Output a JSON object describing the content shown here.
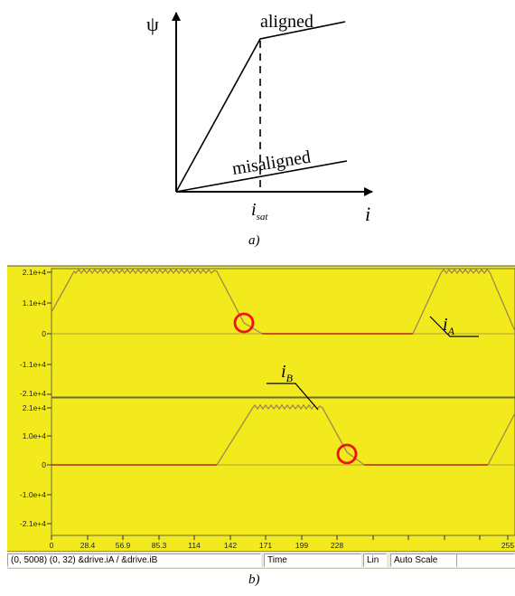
{
  "diagram_a": {
    "y_axis_label": "ψ",
    "x_axis_label": "i",
    "curve_upper_label": "aligned",
    "curve_lower_label": "misaligned",
    "sat_label_main": "i",
    "sat_label_sub": "sat",
    "caption": "a)"
  },
  "scope": {
    "plot_bg": "#f2ea1c",
    "trace_color": "#c02020",
    "ramp_color": "#a08850",
    "marker_color": "#ee1111",
    "top_yticks": [
      "2.1e+4",
      "1.1e+4",
      "0",
      "-1.1e+4",
      "-2.1e+4"
    ],
    "bottom_yticks": [
      "2.1e+4",
      "1.0e+4",
      "0",
      "-1.0e+4",
      "-2.1e+4"
    ],
    "xticks": [
      "0",
      "28.4",
      "56.9",
      "85.3",
      "114",
      "142",
      "171",
      "199",
      "228",
      "255"
    ],
    "label_a_main": "i",
    "label_a_sub": "A",
    "label_b_main": "i",
    "label_b_sub": "B",
    "status": {
      "cell1": "(0, 5008) (0, 32)  &drive.iA / &drive.iB",
      "cell2": "Time",
      "cell3": "Lin",
      "cell4": "Auto Scale"
    },
    "caption": "b)"
  }
}
